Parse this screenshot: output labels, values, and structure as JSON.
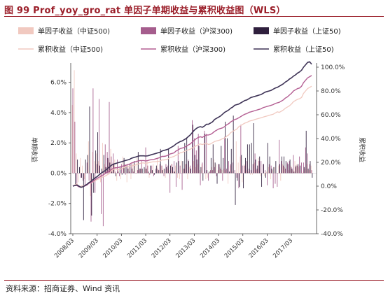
{
  "figure_title": "图 99 Prof_yoy_gro_rat 单因子单期收益与累积收益图（WLS）",
  "source": "资料来源：招商证券、Wind 资讯",
  "colors": {
    "title": "#9b1f2a",
    "bar_zz500": "#f1c9c0",
    "bar_hs300": "#a55d8d",
    "bar_sz50": "#2f1f3d",
    "line_zz500": "#f1c9c0",
    "line_hs300": "#b45f93",
    "line_sz50": "#3f3457"
  },
  "chart_data": {
    "type": "bar+line",
    "legend_position": "top",
    "legend": [
      {
        "key": "bar_zz500",
        "label": "单因子收益（中证500)",
        "kind": "bar"
      },
      {
        "key": "bar_hs300",
        "label": "单因子收益（沪深300)",
        "kind": "bar"
      },
      {
        "key": "bar_sz50",
        "label": "单因子收益（上证50)",
        "kind": "bar"
      },
      {
        "key": "line_zz500",
        "label": "累积收益（中证500)",
        "kind": "line"
      },
      {
        "key": "line_hs300",
        "label": "累积收益（沪深300)",
        "kind": "line"
      },
      {
        "key": "line_sz50",
        "label": "累积收益（上证50)",
        "kind": "line"
      }
    ],
    "y_left": {
      "label": "单期收益",
      "min": -4.0,
      "max": 7.0,
      "ticks": [
        6.0,
        4.0,
        2.0,
        0.0,
        -2.0,
        -4.0
      ],
      "tick_labels": [
        "6.0%",
        "4.0%",
        "2.0%",
        "0.0%",
        "-2.0%",
        "-4.0%"
      ]
    },
    "y_right": {
      "label": "累积收益",
      "min": -40,
      "max": 100,
      "ticks": [
        100,
        80,
        60,
        40,
        20,
        0,
        -20,
        -40
      ],
      "tick_labels": [
        "100.0%",
        "80.0%",
        "60.0%",
        "40.0%",
        "20.0%",
        "0.0%",
        "-20.0%",
        "-40.0%"
      ]
    },
    "x": {
      "start": "2008/03",
      "months": 119,
      "tick_labels": [
        "2008/03",
        "2009/03",
        "2010/03",
        "2011/03",
        "2012/03",
        "2013/03",
        "2014/03",
        "2015/03",
        "2016/03",
        "2017/03"
      ]
    },
    "series": {
      "bar_zz500": [
        4.5,
        6.8,
        1.3,
        -0.6,
        1.0,
        0.5,
        -0.4,
        0.0,
        2.1,
        -1.5,
        1.4,
        0.8,
        1.3,
        0.8,
        -0.6,
        2.0,
        0.6,
        0.4,
        0.9,
        1.6,
        0.7,
        0.9,
        -0.5,
        0.3,
        -0.4,
        1.1,
        0.6,
        -0.6,
        0.5,
        -0.4,
        0.7,
        0.6,
        1.0,
        0.2,
        0.3,
        0.0,
        0.3,
        0.8,
        -0.3,
        0.2,
        0.6,
        0.0,
        1.0,
        0.2,
        0.5,
        0.3,
        -0.3,
        0.3,
        0.2,
        0.6,
        0.1,
        0.5,
        -0.3,
        -0.4,
        0.8,
        0.3,
        0.6,
        -0.4,
        0.4,
        0.0,
        0.8,
        0.4,
        0.6,
        0.2,
        0.6,
        0.0,
        -0.4,
        -0.3,
        0.1,
        0.4,
        0.9,
        0.6,
        0.2,
        0.4,
        0.2,
        0.3,
        0.2,
        -0.7,
        0.5,
        0.1,
        0.0,
        2.1,
        0.7,
        1.1,
        -0.6,
        0.6,
        0.2,
        0.1,
        -0.1,
        -0.1,
        0.7,
        0.2,
        1.0,
        -0.2,
        0.0,
        -0.2,
        0.1,
        0.4,
        -0.4,
        0.2,
        0.4,
        0.0,
        0.5,
        -0.5,
        0.6,
        0.4,
        0.0,
        0.2,
        0.5,
        0.2,
        0.8,
        0.6,
        0.4,
        0.0,
        0.1,
        0.3,
        0.6,
        0.2,
        0.5
      ],
      "bar_hs300": [
        5.6,
        3.4,
        -0.8,
        0.0,
        -0.3,
        -0.5,
        -0.8,
        0.7,
        -0.5,
        -3.2,
        5.6,
        -1.3,
        0.6,
        4.9,
        -2.7,
        -3.5,
        1.9,
        1.4,
        4.7,
        1.1,
        1.3,
        0.1,
        0.9,
        -0.2,
        0.6,
        0.4,
        -0.1,
        0.6,
        0.1,
        0.6,
        0.1,
        0.0,
        0.2,
        0.3,
        0.8,
        0.0,
        1.7,
        0.5,
        -0.1,
        0.5,
        -0.2,
        0.3,
        0.3,
        0.6,
        0.5,
        -0.2,
        0.6,
        0.5,
        -1.3,
        0.6,
        0.8,
        -0.9,
        1.8,
        0.5,
        -1.1,
        0.3,
        0.6,
        0.9,
        0.5,
        3.5,
        2.3,
        1.5,
        2.6,
        -0.8,
        0.7,
        2.8,
        2.6,
        -0.5,
        0.2,
        0.2,
        0.4,
        -0.2,
        0.6,
        0.3,
        -0.5,
        2.4,
        0.3,
        0.8,
        0.6,
        0.7,
        0.2,
        -0.3,
        -1.0,
        3.2,
        0.5,
        0.5,
        0.8,
        0.3,
        0.2,
        0.6,
        1.3,
        0.3,
        0.8,
        0.8,
        0.6,
        0.2,
        -0.8,
        0.6,
        0.5,
        -1.0,
        -0.7,
        -0.9,
        2.2,
        0.8,
        0.5,
        0.3,
        0.7,
        0.8,
        0.4,
        1.2,
        0.4,
        0.5,
        1.1,
        0.7,
        0.7,
        1.7,
        1.3,
        0.6,
        0.2
      ],
      "bar_sz50": [
        0.0,
        -0.8,
        0.9,
        0.4,
        -0.3,
        -3.1,
        0.9,
        1.2,
        4.4,
        -2.8,
        -1.3,
        1.5,
        2.7,
        0.5,
        0.3,
        1.2,
        0.4,
        1.0,
        0.7,
        0.1,
        0.6,
        -0.2,
        0.1,
        0.4,
        -0.1,
        1.0,
        0.5,
        0.3,
        0.6,
        0.3,
        0.8,
        0.0,
        1.4,
        0.3,
        0.3,
        0.4,
        0.3,
        0.1,
        0.5,
        0.2,
        -0.1,
        0.5,
        0.2,
        1.6,
        0.2,
        0.3,
        0.4,
        1.6,
        0.5,
        0.4,
        0.1,
        0.7,
        0.8,
        0.0,
        0.8,
        2.0,
        2.3,
        0.8,
        0.3,
        3.2,
        1.2,
        0.9,
        1.8,
        0.4,
        -0.5,
        2.6,
        0.2,
        0.1,
        1.0,
        1.9,
        0.7,
        -0.7,
        0.6,
        1.8,
        1.0,
        3.4,
        2.3,
        0.1,
        1.6,
        3.8,
        -2.1,
        -0.5,
        -0.9,
        1.2,
        -1.0,
        1.0,
        1.9,
        1.9,
        2.0,
        3.3,
        0.9,
        0.5,
        1.1,
        -0.9,
        0.6,
        -0.3,
        2.0,
        1.1,
        0.3,
        0.4,
        0.8,
        0.0,
        0.6,
        1.1,
        1.1,
        0.8,
        0.6,
        0.9,
        0.3,
        0.1,
        0.5,
        0.6,
        0.5,
        0.0,
        0.4,
        2.8,
        0.3,
        0.8,
        -0.3
      ],
      "line_zz500": [
        0.0,
        1.0,
        2.0,
        -0.5,
        -0.2,
        0.5,
        0.3,
        1.0,
        3.0,
        2.5,
        3.5,
        4.5,
        5.5,
        6.0,
        7.0,
        8.0,
        8.5,
        9.5,
        10.5,
        13.0,
        14.0,
        14.5,
        14.0,
        14.2,
        14.5,
        15.5,
        16.0,
        17.0,
        16.5,
        17.0,
        17.5,
        17.8,
        18.5,
        19.0,
        19.5,
        19.5,
        19.2,
        19.5,
        19.8,
        20.3,
        20.5,
        20.5,
        20.8,
        21.0,
        22.0,
        22.0,
        22.3,
        22.8,
        24.0,
        24.5,
        25.0,
        26.0,
        26.5,
        28.0,
        28.5,
        29.0,
        30.0,
        30.5,
        31.0,
        32.0,
        33.0,
        34.0,
        35.0,
        35.5,
        35.0,
        35.5,
        36.0,
        35.0,
        35.5,
        36.5,
        37.5,
        38.0,
        38.5,
        39.0,
        40.0,
        40.5,
        42.0,
        43.0,
        45.0,
        46.0,
        47.0,
        48.0,
        50.0,
        51.0,
        52.0,
        53.0,
        53.5,
        54.5,
        55.0,
        55.5,
        56.0,
        56.5,
        57.0,
        57.5,
        58.0,
        58.5,
        59.0,
        59.5,
        60.0,
        60.5,
        61.5,
        62.5,
        62.0,
        63.0,
        64.0,
        65.5,
        66.5,
        67.5,
        69.0,
        71.0,
        72.0,
        73.0,
        73.5,
        74.5,
        78.0,
        80.0,
        82.0,
        83.0,
        84.0
      ],
      "line_hs300": [
        0.0,
        0.5,
        0.5,
        -0.5,
        -1.0,
        -0.5,
        0.2,
        1.0,
        2.5,
        3.0,
        4.0,
        5.5,
        6.5,
        7.5,
        8.5,
        9.5,
        10.5,
        11.5,
        12.5,
        14.0,
        15.0,
        15.5,
        15.5,
        16.0,
        16.5,
        17.0,
        17.5,
        18.0,
        18.5,
        19.5,
        20.0,
        20.5,
        21.0,
        21.5,
        21.5,
        21.5,
        21.2,
        21.5,
        22.0,
        22.3,
        22.5,
        23.0,
        23.5,
        24.0,
        25.0,
        25.0,
        25.3,
        26.0,
        27.0,
        27.5,
        28.0,
        29.5,
        30.5,
        31.5,
        32.0,
        32.5,
        33.5,
        34.5,
        35.5,
        37.0,
        38.5,
        40.0,
        41.0,
        41.5,
        41.0,
        42.0,
        43.0,
        43.0,
        43.5,
        44.5,
        46.0,
        47.0,
        48.0,
        48.5,
        49.0,
        50.0,
        51.5,
        52.5,
        54.0,
        55.0,
        56.0,
        56.5,
        57.5,
        58.5,
        59.5,
        60.5,
        61.0,
        62.0,
        62.5,
        63.0,
        63.5,
        64.0,
        64.5,
        65.0,
        66.0,
        66.5,
        67.0,
        67.5,
        68.0,
        68.5,
        69.5,
        70.0,
        70.5,
        71.5,
        72.5,
        74.0,
        75.0,
        76.5,
        78.0,
        80.0,
        81.0,
        82.0,
        82.5,
        84.0,
        87.0,
        89.0,
        91.0,
        92.0,
        93.0
      ],
      "line_sz50": [
        0.0,
        0.5,
        1.0,
        0.0,
        -1.0,
        -0.5,
        0.5,
        1.5,
        3.0,
        4.0,
        5.5,
        7.0,
        8.0,
        9.5,
        11.0,
        12.0,
        13.0,
        14.5,
        16.0,
        17.5,
        18.5,
        19.0,
        19.5,
        20.0,
        20.5,
        21.0,
        21.5,
        22.0,
        22.5,
        23.5,
        24.0,
        24.5,
        25.0,
        25.5,
        25.5,
        25.5,
        25.3,
        25.5,
        26.0,
        26.5,
        27.0,
        27.5,
        28.0,
        28.5,
        29.5,
        30.0,
        30.5,
        31.0,
        32.0,
        33.0,
        34.0,
        35.5,
        36.5,
        37.5,
        38.0,
        39.0,
        40.0,
        41.5,
        43.0,
        45.0,
        47.0,
        48.5,
        49.5,
        50.0,
        49.5,
        50.5,
        52.0,
        52.0,
        53.0,
        54.0,
        56.0,
        57.0,
        58.0,
        59.0,
        60.5,
        62.0,
        63.0,
        64.0,
        65.5,
        66.5,
        68.0,
        68.5,
        69.0,
        70.0,
        71.0,
        72.0,
        72.5,
        73.5,
        74.5,
        75.0,
        75.5,
        76.0,
        76.5,
        77.0,
        78.0,
        79.0,
        79.5,
        80.0,
        80.5,
        81.5,
        82.5,
        83.0,
        84.0,
        85.0,
        86.0,
        87.5,
        88.5,
        90.0,
        91.0,
        92.5,
        93.5,
        95.0,
        96.0,
        97.5,
        100.0,
        102.0,
        104.0,
        104.5,
        102.5
      ]
    }
  }
}
